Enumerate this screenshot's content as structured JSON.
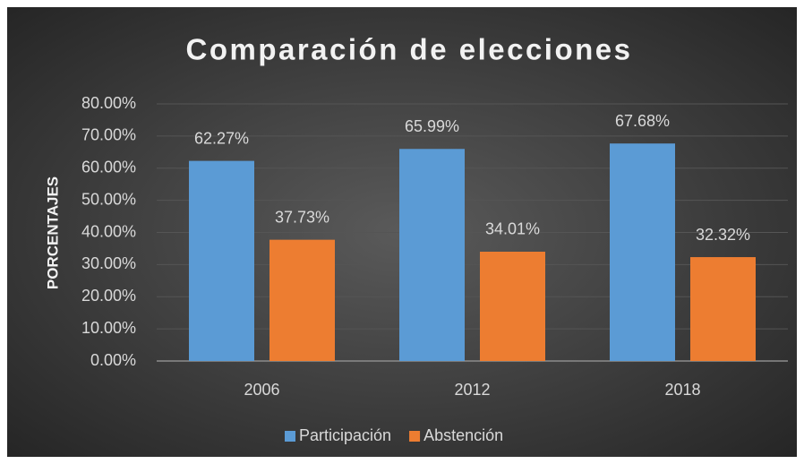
{
  "chart_data": {
    "type": "bar",
    "title": "Comparación de elecciones",
    "y_label": "PORCENTAJES",
    "categories": [
      "2006",
      "2012",
      "2018"
    ],
    "series": [
      {
        "name": "Participación",
        "color": "#5b9bd5",
        "values": [
          62.27,
          65.99,
          67.68
        ],
        "value_labels": [
          "62.27%",
          "65.99%",
          "67.68%"
        ]
      },
      {
        "name": "Abstención",
        "color": "#ed7d31",
        "values": [
          37.73,
          34.01,
          32.32
        ],
        "value_labels": [
          "37.73%",
          "34.01%",
          "32.32%"
        ]
      }
    ],
    "ylim": [
      0,
      80
    ],
    "yticks": [
      {
        "value": 0,
        "label": "0.00%"
      },
      {
        "value": 10,
        "label": "10.00%"
      },
      {
        "value": 20,
        "label": "20.00%"
      },
      {
        "value": 30,
        "label": "30.00%"
      },
      {
        "value": 40,
        "label": "40.00%"
      },
      {
        "value": 50,
        "label": "50.00%"
      },
      {
        "value": 60,
        "label": "60.00%"
      },
      {
        "value": 70,
        "label": "70.00%"
      },
      {
        "value": 80,
        "label": "80.00%"
      }
    ],
    "grid": true,
    "legend": "bottom"
  }
}
